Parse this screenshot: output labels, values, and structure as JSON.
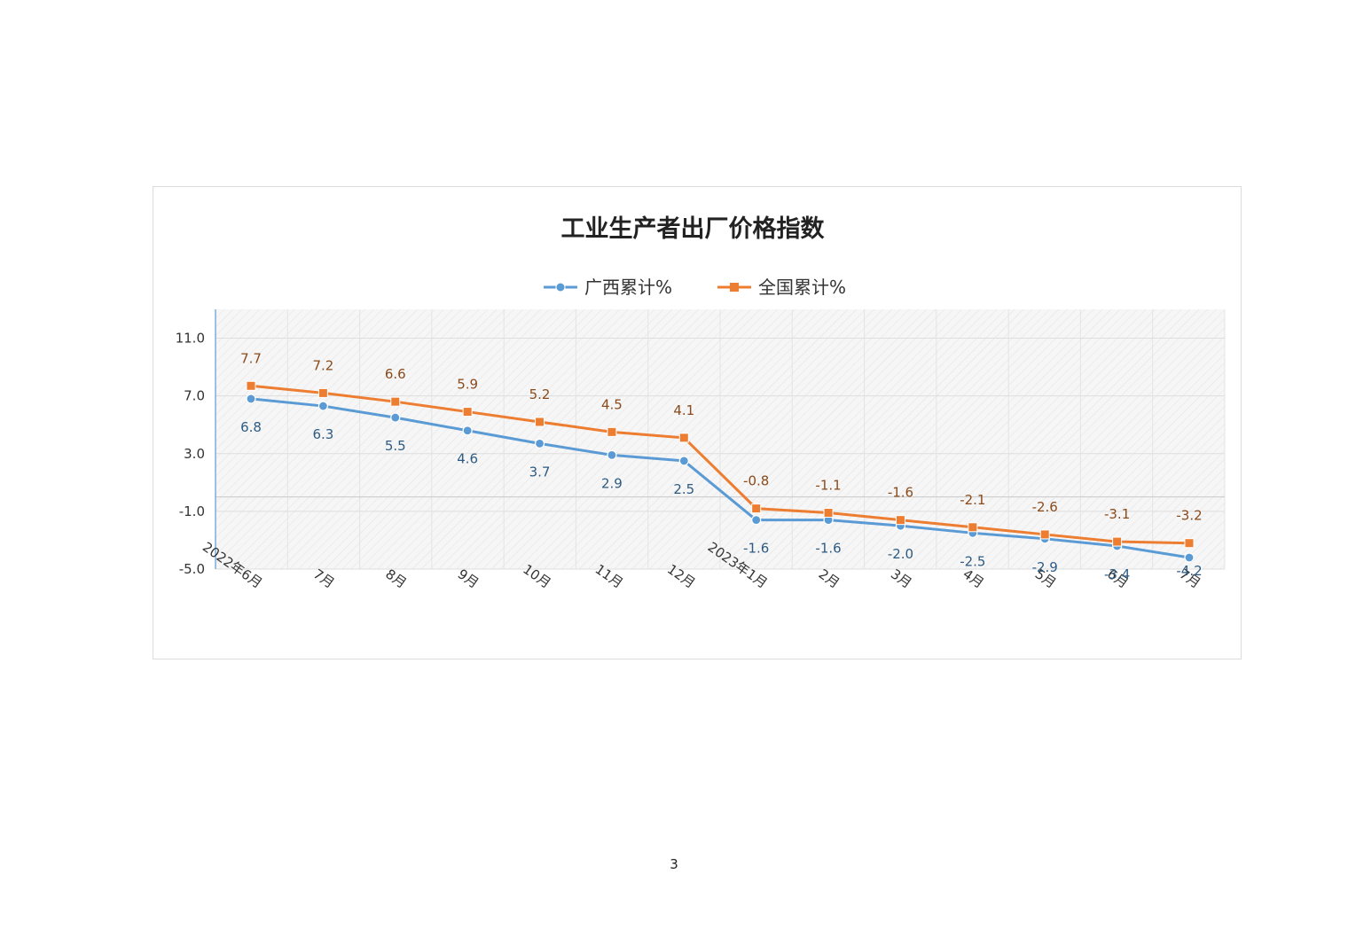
{
  "page": {
    "page_number": "3"
  },
  "chart_data": {
    "type": "line",
    "title": "工业生产者出厂价格指数",
    "xlabel": "",
    "ylabel": "",
    "categories": [
      "2022年6月",
      "7月",
      "8月",
      "9月",
      "10月",
      "11月",
      "12月",
      "2023年1月",
      "2月",
      "3月",
      "4月",
      "5月",
      "6月",
      "7月"
    ],
    "y_ticks": [
      11.0,
      7.0,
      3.0,
      -1.0,
      -5.0
    ],
    "y_tick_labels": [
      "11.0",
      "7.0",
      "3.0",
      "-1.0",
      "-5.0"
    ],
    "ylim": [
      -5.0,
      13.0
    ],
    "grid": true,
    "legend_position": "top-center",
    "series": [
      {
        "name": "广西累计%",
        "marker": "circle",
        "color": "#5b9bd5",
        "label_color": "#2e5b83",
        "values": [
          6.8,
          6.3,
          5.5,
          4.6,
          3.7,
          2.9,
          2.5,
          -1.6,
          -1.6,
          -2.0,
          -2.5,
          -2.9,
          -3.4,
          -4.2
        ],
        "value_labels": [
          "6.8",
          "6.3",
          "5.5",
          "4.6",
          "3.7",
          "2.9",
          "2.5",
          "-1.6",
          "-1.6",
          "-2.0",
          "-2.5",
          "-2.9",
          "-3.4",
          "-4.2"
        ]
      },
      {
        "name": "全国累计%",
        "marker": "square",
        "color": "#ed7d31",
        "label_color": "#8a4a1c",
        "values": [
          7.7,
          7.2,
          6.6,
          5.9,
          5.2,
          4.5,
          4.1,
          -0.8,
          -1.1,
          -1.6,
          -2.1,
          -2.6,
          -3.1,
          -3.2
        ],
        "value_labels": [
          "7.7",
          "7.2",
          "6.6",
          "5.9",
          "5.2",
          "4.5",
          "4.1",
          "-0.8",
          "-1.1",
          "-1.6",
          "-2.1",
          "-2.6",
          "-3.1",
          "-3.2"
        ]
      }
    ]
  }
}
